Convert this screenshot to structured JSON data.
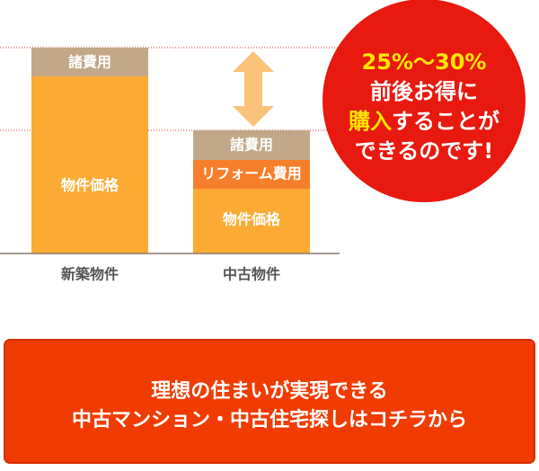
{
  "comparison": {
    "new_property": {
      "label": "新築物件",
      "segments": [
        "諸費用",
        "物件価格"
      ]
    },
    "used_property": {
      "label": "中古物件",
      "segments": [
        "諸費用",
        "リフォーム費用",
        "物件価格"
      ]
    }
  },
  "badge": {
    "line1": "25%〜30%",
    "line2": "前後お得に",
    "line3_highlight": "購入",
    "line3_rest": "することが",
    "line4": "できるのです!"
  },
  "cta": {
    "line1": "理想の住まいが実現できる",
    "line2": "中古マンション・中古住宅探しはコチラから"
  }
}
